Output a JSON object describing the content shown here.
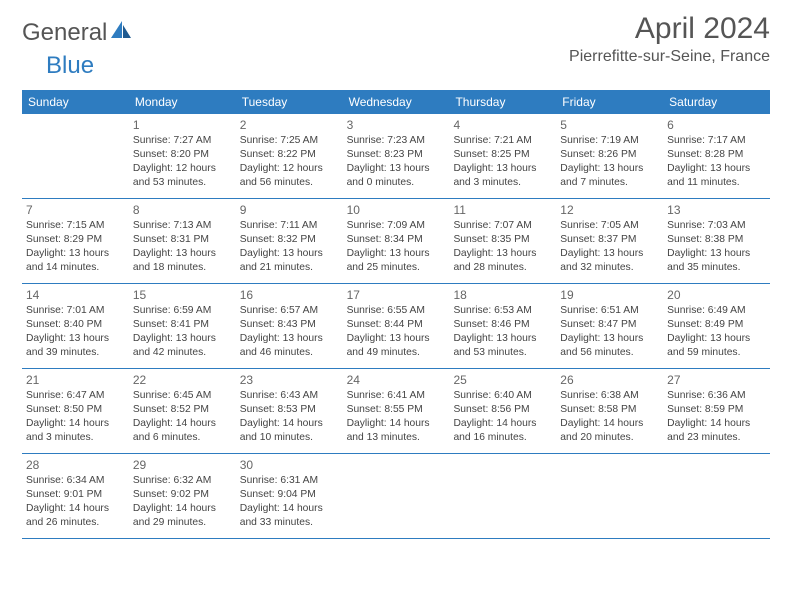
{
  "logo": {
    "part1": "General",
    "part2": "Blue"
  },
  "title": "April 2024",
  "location": "Pierrefitte-sur-Seine, France",
  "colors": {
    "header_bg": "#2e7cc0",
    "header_text": "#ffffff",
    "divider": "#2e7cc0",
    "body_text": "#444444",
    "page_bg": "#ffffff"
  },
  "typography": {
    "title_fontsize": 30,
    "location_fontsize": 16,
    "dow_fontsize": 12,
    "cell_fontsize": 10.3
  },
  "dow": [
    "Sunday",
    "Monday",
    "Tuesday",
    "Wednesday",
    "Thursday",
    "Friday",
    "Saturday"
  ],
  "weeks": [
    [
      null,
      {
        "n": "1",
        "sr": "Sunrise: 7:27 AM",
        "ss": "Sunset: 8:20 PM",
        "d1": "Daylight: 12 hours",
        "d2": "and 53 minutes."
      },
      {
        "n": "2",
        "sr": "Sunrise: 7:25 AM",
        "ss": "Sunset: 8:22 PM",
        "d1": "Daylight: 12 hours",
        "d2": "and 56 minutes."
      },
      {
        "n": "3",
        "sr": "Sunrise: 7:23 AM",
        "ss": "Sunset: 8:23 PM",
        "d1": "Daylight: 13 hours",
        "d2": "and 0 minutes."
      },
      {
        "n": "4",
        "sr": "Sunrise: 7:21 AM",
        "ss": "Sunset: 8:25 PM",
        "d1": "Daylight: 13 hours",
        "d2": "and 3 minutes."
      },
      {
        "n": "5",
        "sr": "Sunrise: 7:19 AM",
        "ss": "Sunset: 8:26 PM",
        "d1": "Daylight: 13 hours",
        "d2": "and 7 minutes."
      },
      {
        "n": "6",
        "sr": "Sunrise: 7:17 AM",
        "ss": "Sunset: 8:28 PM",
        "d1": "Daylight: 13 hours",
        "d2": "and 11 minutes."
      }
    ],
    [
      {
        "n": "7",
        "sr": "Sunrise: 7:15 AM",
        "ss": "Sunset: 8:29 PM",
        "d1": "Daylight: 13 hours",
        "d2": "and 14 minutes."
      },
      {
        "n": "8",
        "sr": "Sunrise: 7:13 AM",
        "ss": "Sunset: 8:31 PM",
        "d1": "Daylight: 13 hours",
        "d2": "and 18 minutes."
      },
      {
        "n": "9",
        "sr": "Sunrise: 7:11 AM",
        "ss": "Sunset: 8:32 PM",
        "d1": "Daylight: 13 hours",
        "d2": "and 21 minutes."
      },
      {
        "n": "10",
        "sr": "Sunrise: 7:09 AM",
        "ss": "Sunset: 8:34 PM",
        "d1": "Daylight: 13 hours",
        "d2": "and 25 minutes."
      },
      {
        "n": "11",
        "sr": "Sunrise: 7:07 AM",
        "ss": "Sunset: 8:35 PM",
        "d1": "Daylight: 13 hours",
        "d2": "and 28 minutes."
      },
      {
        "n": "12",
        "sr": "Sunrise: 7:05 AM",
        "ss": "Sunset: 8:37 PM",
        "d1": "Daylight: 13 hours",
        "d2": "and 32 minutes."
      },
      {
        "n": "13",
        "sr": "Sunrise: 7:03 AM",
        "ss": "Sunset: 8:38 PM",
        "d1": "Daylight: 13 hours",
        "d2": "and 35 minutes."
      }
    ],
    [
      {
        "n": "14",
        "sr": "Sunrise: 7:01 AM",
        "ss": "Sunset: 8:40 PM",
        "d1": "Daylight: 13 hours",
        "d2": "and 39 minutes."
      },
      {
        "n": "15",
        "sr": "Sunrise: 6:59 AM",
        "ss": "Sunset: 8:41 PM",
        "d1": "Daylight: 13 hours",
        "d2": "and 42 minutes."
      },
      {
        "n": "16",
        "sr": "Sunrise: 6:57 AM",
        "ss": "Sunset: 8:43 PM",
        "d1": "Daylight: 13 hours",
        "d2": "and 46 minutes."
      },
      {
        "n": "17",
        "sr": "Sunrise: 6:55 AM",
        "ss": "Sunset: 8:44 PM",
        "d1": "Daylight: 13 hours",
        "d2": "and 49 minutes."
      },
      {
        "n": "18",
        "sr": "Sunrise: 6:53 AM",
        "ss": "Sunset: 8:46 PM",
        "d1": "Daylight: 13 hours",
        "d2": "and 53 minutes."
      },
      {
        "n": "19",
        "sr": "Sunrise: 6:51 AM",
        "ss": "Sunset: 8:47 PM",
        "d1": "Daylight: 13 hours",
        "d2": "and 56 minutes."
      },
      {
        "n": "20",
        "sr": "Sunrise: 6:49 AM",
        "ss": "Sunset: 8:49 PM",
        "d1": "Daylight: 13 hours",
        "d2": "and 59 minutes."
      }
    ],
    [
      {
        "n": "21",
        "sr": "Sunrise: 6:47 AM",
        "ss": "Sunset: 8:50 PM",
        "d1": "Daylight: 14 hours",
        "d2": "and 3 minutes."
      },
      {
        "n": "22",
        "sr": "Sunrise: 6:45 AM",
        "ss": "Sunset: 8:52 PM",
        "d1": "Daylight: 14 hours",
        "d2": "and 6 minutes."
      },
      {
        "n": "23",
        "sr": "Sunrise: 6:43 AM",
        "ss": "Sunset: 8:53 PM",
        "d1": "Daylight: 14 hours",
        "d2": "and 10 minutes."
      },
      {
        "n": "24",
        "sr": "Sunrise: 6:41 AM",
        "ss": "Sunset: 8:55 PM",
        "d1": "Daylight: 14 hours",
        "d2": "and 13 minutes."
      },
      {
        "n": "25",
        "sr": "Sunrise: 6:40 AM",
        "ss": "Sunset: 8:56 PM",
        "d1": "Daylight: 14 hours",
        "d2": "and 16 minutes."
      },
      {
        "n": "26",
        "sr": "Sunrise: 6:38 AM",
        "ss": "Sunset: 8:58 PM",
        "d1": "Daylight: 14 hours",
        "d2": "and 20 minutes."
      },
      {
        "n": "27",
        "sr": "Sunrise: 6:36 AM",
        "ss": "Sunset: 8:59 PM",
        "d1": "Daylight: 14 hours",
        "d2": "and 23 minutes."
      }
    ],
    [
      {
        "n": "28",
        "sr": "Sunrise: 6:34 AM",
        "ss": "Sunset: 9:01 PM",
        "d1": "Daylight: 14 hours",
        "d2": "and 26 minutes."
      },
      {
        "n": "29",
        "sr": "Sunrise: 6:32 AM",
        "ss": "Sunset: 9:02 PM",
        "d1": "Daylight: 14 hours",
        "d2": "and 29 minutes."
      },
      {
        "n": "30",
        "sr": "Sunrise: 6:31 AM",
        "ss": "Sunset: 9:04 PM",
        "d1": "Daylight: 14 hours",
        "d2": "and 33 minutes."
      },
      null,
      null,
      null,
      null
    ]
  ]
}
